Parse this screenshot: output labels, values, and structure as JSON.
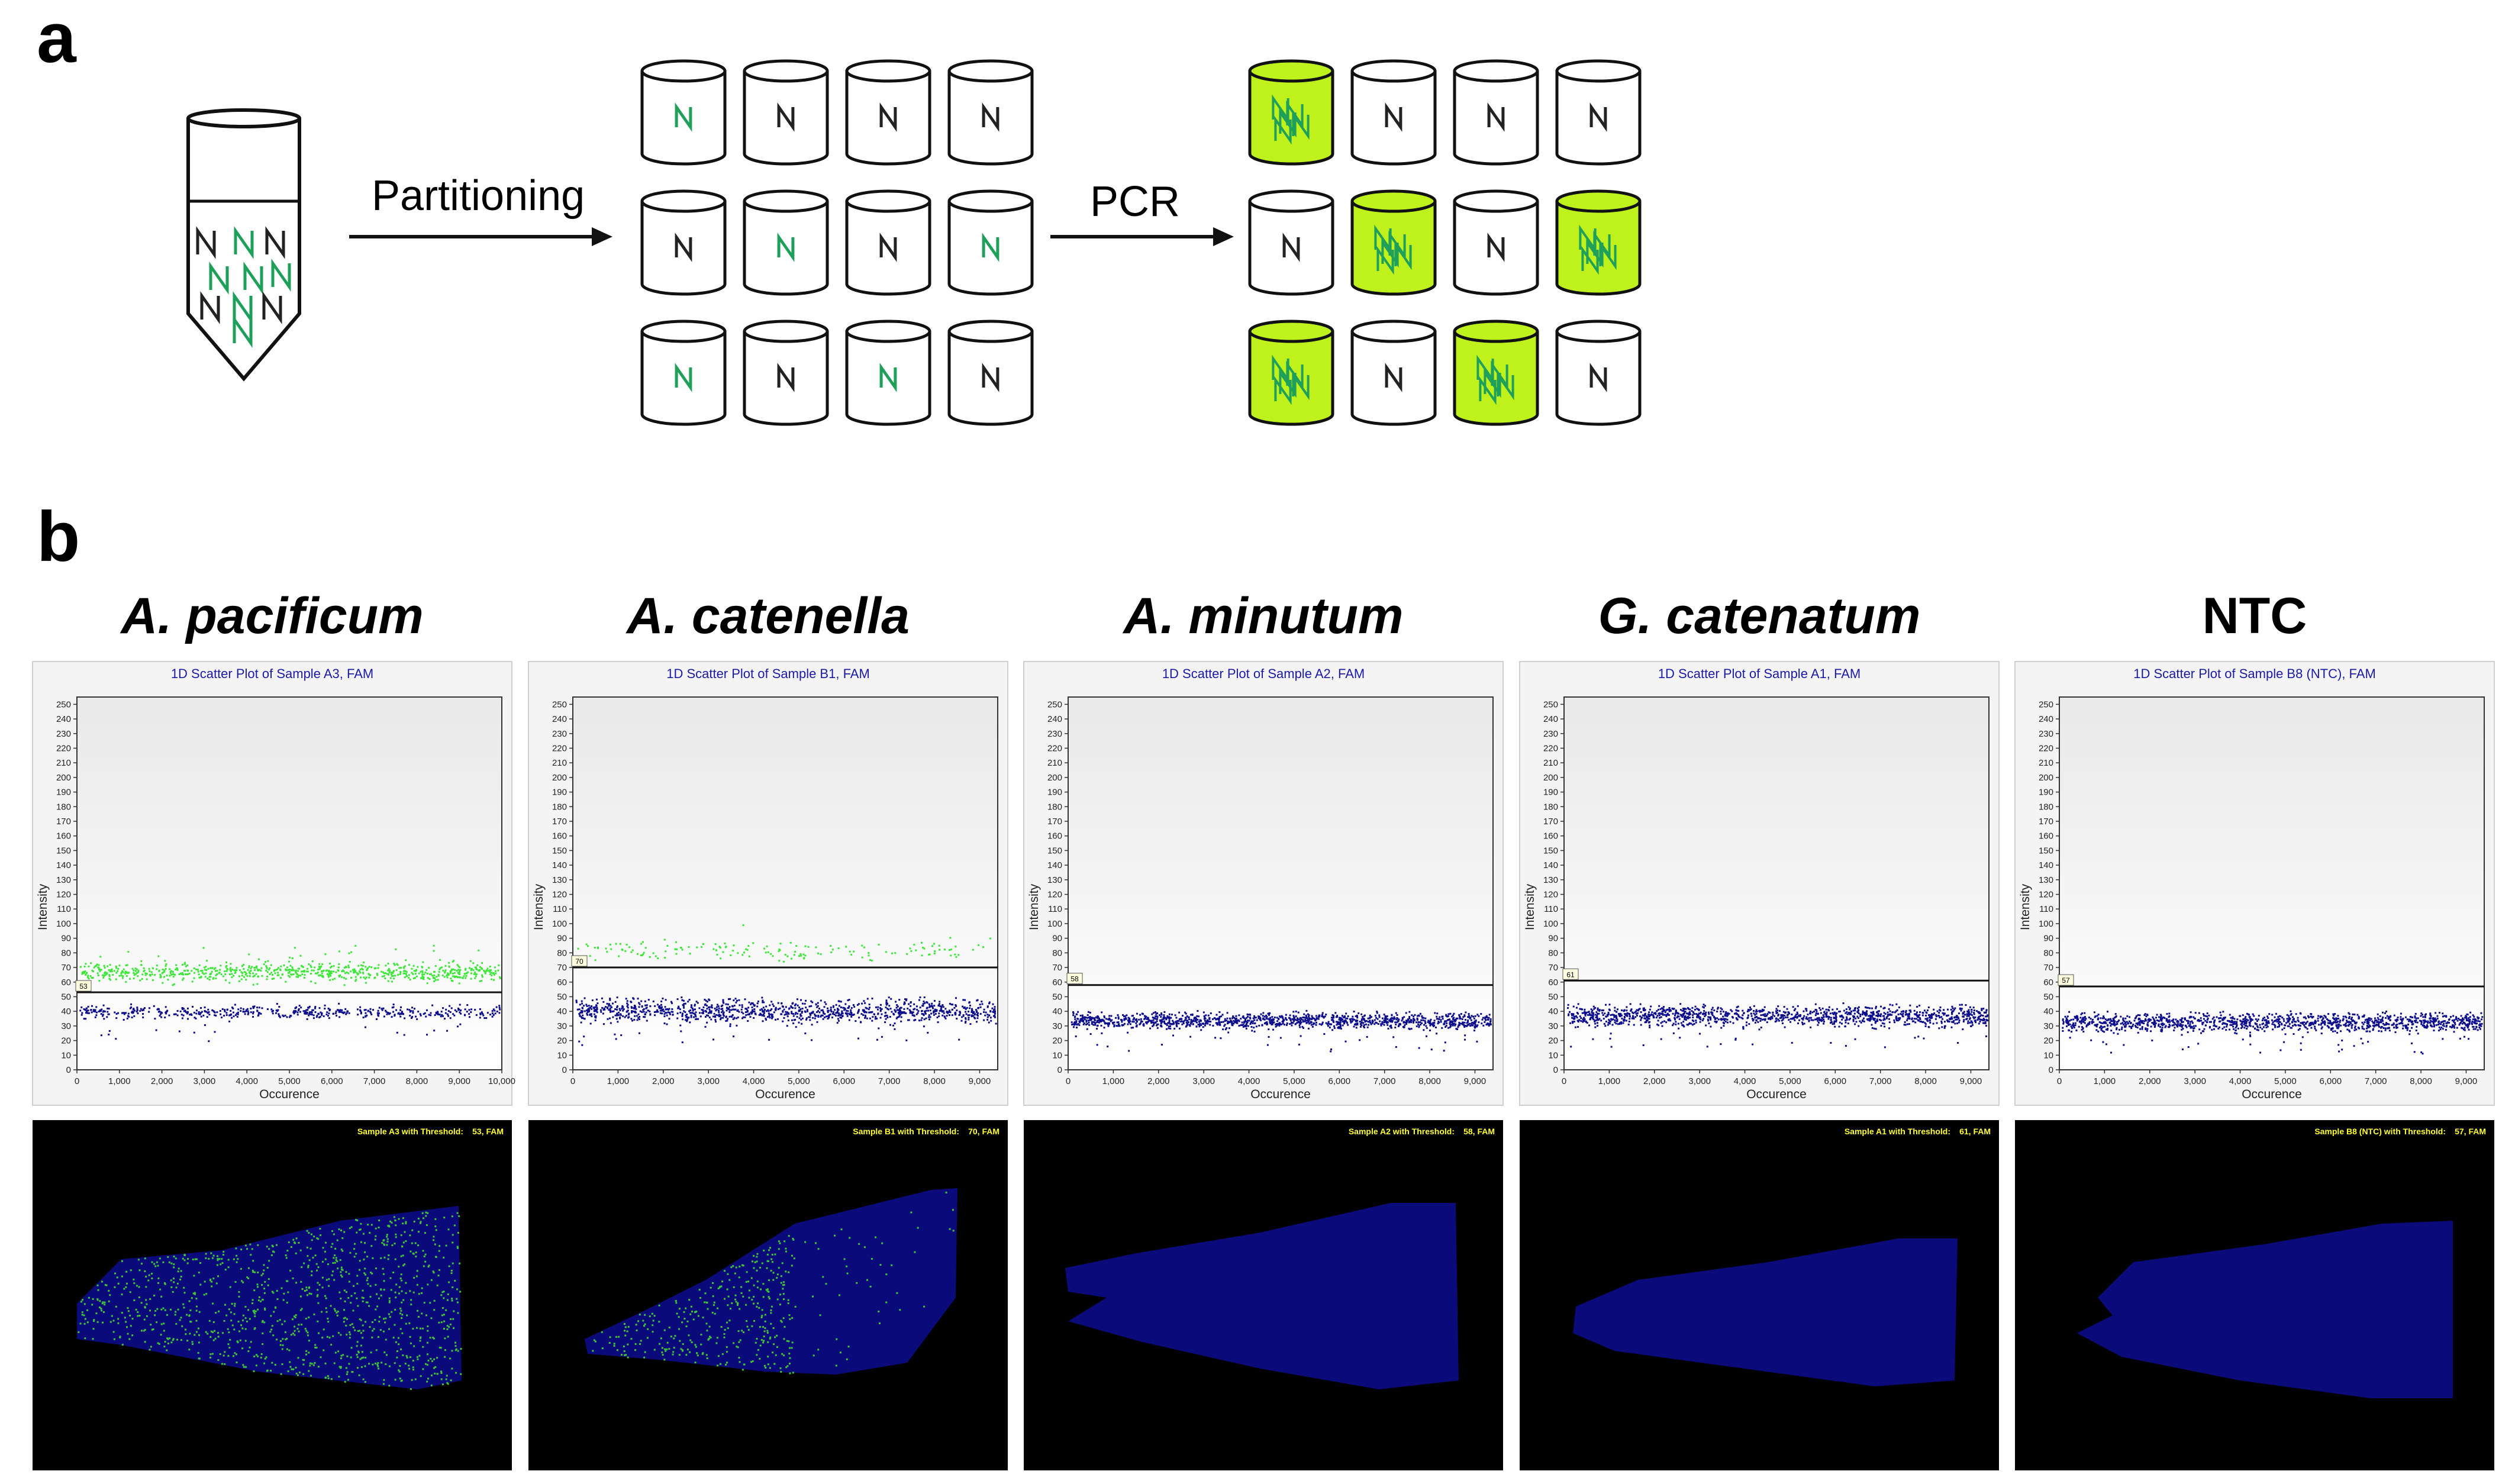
{
  "panel_a": {
    "letter": "a",
    "step1": "Partitioning",
    "step2": "PCR",
    "partitions_before": [
      [
        true,
        false,
        false,
        false
      ],
      [
        false,
        true,
        false,
        true
      ],
      [
        true,
        false,
        true,
        false
      ]
    ],
    "partitions_after": [
      [
        true,
        false,
        false,
        false
      ],
      [
        false,
        true,
        false,
        true
      ],
      [
        true,
        false,
        true,
        false
      ]
    ],
    "colors": {
      "target": "#1fa05a",
      "background": "#222222",
      "positive_fill": "#bff21c"
    }
  },
  "panel_b": {
    "letter": "b",
    "y_ticks": [
      0,
      10,
      20,
      30,
      40,
      50,
      60,
      70,
      80,
      90,
      100,
      110,
      120,
      130,
      140,
      150,
      160,
      170,
      180,
      190,
      200,
      210,
      220,
      230,
      240,
      250
    ],
    "colors": {
      "positive": "#3ee63a",
      "negative": "#0d0d8c",
      "caption": "#ffff33"
    },
    "samples": [
      {
        "species": "A. pacificum",
        "plot_title": "1D Scatter Plot of Sample A3, FAM",
        "ylabel": "Intensity",
        "xlabel": "Occurence",
        "x_ticks": [
          "0",
          "1,000",
          "2,000",
          "3,000",
          "4,000",
          "5,000",
          "6,000",
          "7,000",
          "8,000",
          "9,000",
          "10,000"
        ],
        "x_max": 10000,
        "threshold": 53,
        "caption_left": "Sample A3 with Threshold:",
        "caption_right": "53, FAM",
        "negative_band": [
          35,
          45
        ],
        "positive_band": [
          60,
          75
        ],
        "positive_fraction": 0.6,
        "chip_shape": "A",
        "chip_positive_fraction": 0.6
      },
      {
        "species": "A. catenella",
        "plot_title": "1D Scatter Plot of Sample B1, FAM",
        "ylabel": "Intensity",
        "xlabel": "Occurence",
        "x_ticks": [
          "0",
          "1,000",
          "2,000",
          "3,000",
          "4,000",
          "5,000",
          "6,000",
          "7,000",
          "8,000",
          "9,000"
        ],
        "x_max": 9400,
        "threshold": 70,
        "caption_left": "Sample B1 with Threshold:",
        "caption_right": "70, FAM",
        "negative_band": [
          32,
          50
        ],
        "positive_band": [
          74,
          90
        ],
        "positive_fraction": 0.12,
        "chip_shape": "B",
        "chip_positive_fraction": 0.18
      },
      {
        "species": "A. minutum",
        "plot_title": "1D Scatter Plot of Sample A2, FAM",
        "ylabel": "Intensity",
        "xlabel": "Occurence",
        "x_ticks": [
          "0",
          "1,000",
          "2,000",
          "3,000",
          "4,000",
          "5,000",
          "6,000",
          "7,000",
          "8,000",
          "9,000"
        ],
        "x_max": 9400,
        "threshold": 58,
        "caption_left": "Sample A2 with Threshold:",
        "caption_right": "58, FAM",
        "negative_band": [
          28,
          40
        ],
        "positive_band": [
          0,
          0
        ],
        "positive_fraction": 0,
        "chip_shape": "C",
        "chip_positive_fraction": 0
      },
      {
        "species": "G. catenatum",
        "plot_title": "1D Scatter Plot of Sample A1, FAM",
        "ylabel": "Intensity",
        "xlabel": "Occurence",
        "x_ticks": [
          "0",
          "1,000",
          "2,000",
          "3,000",
          "4,000",
          "5,000",
          "6,000",
          "7,000",
          "8,000",
          "9,000"
        ],
        "x_max": 9400,
        "threshold": 61,
        "caption_left": "Sample A1 with Threshold:",
        "caption_right": "61, FAM",
        "negative_band": [
          30,
          45
        ],
        "positive_band": [
          0,
          0
        ],
        "positive_fraction": 0,
        "chip_shape": "D",
        "chip_positive_fraction": 0
      },
      {
        "species": "NTC",
        "plot_title": "1D Scatter Plot of Sample B8 (NTC), FAM",
        "ylabel": "Intensity",
        "xlabel": "Occurence",
        "x_ticks": [
          "0",
          "1,000",
          "2,000",
          "3,000",
          "4,000",
          "5,000",
          "6,000",
          "7,000",
          "8,000",
          "9,000"
        ],
        "x_max": 9400,
        "threshold": 57,
        "caption_left": "Sample B8 (NTC) with Threshold:",
        "caption_right": "57, FAM",
        "negative_band": [
          26,
          40
        ],
        "positive_band": [
          0,
          0
        ],
        "positive_fraction": 0,
        "chip_shape": "E",
        "chip_positive_fraction": 0
      }
    ]
  }
}
